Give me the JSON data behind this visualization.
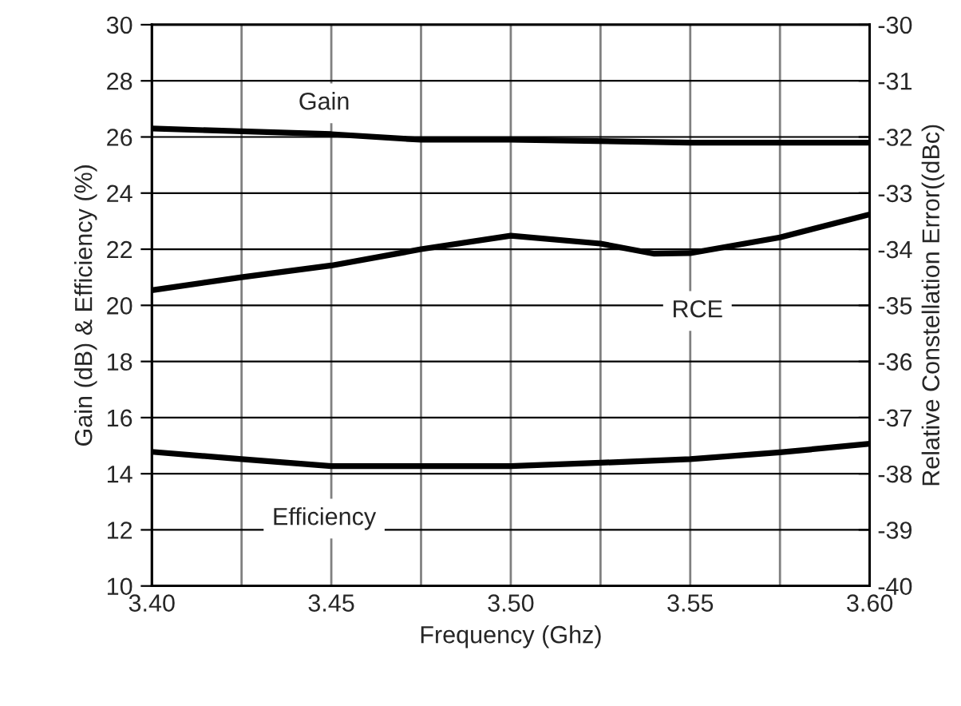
{
  "chart_data": {
    "type": "line",
    "xlabel": "Frequency (Ghz)",
    "ylabel": "Gain (dB) & Efficiency (%)",
    "y2label": "Relative Constellation Error((dBc)",
    "xlim": [
      3.4,
      3.6
    ],
    "xticks": [
      {
        "value": 3.4,
        "label": "3.40"
      },
      {
        "value": 3.425,
        "label": null
      },
      {
        "value": 3.45,
        "label": "3.45"
      },
      {
        "value": 3.475,
        "label": null
      },
      {
        "value": 3.5,
        "label": "3.50"
      },
      {
        "value": 3.525,
        "label": null
      },
      {
        "value": 3.55,
        "label": "3.55"
      },
      {
        "value": 3.575,
        "label": null
      },
      {
        "value": 3.6,
        "label": "3.60"
      }
    ],
    "ylim": [
      10,
      30
    ],
    "yticks": [
      10,
      12,
      14,
      16,
      18,
      20,
      22,
      24,
      26,
      28,
      30
    ],
    "y2lim": [
      -40,
      -30
    ],
    "y2ticks": [
      -40,
      -39,
      -38,
      -37,
      -36,
      -35,
      -34,
      -33,
      -32,
      -31,
      -30
    ],
    "grid": true,
    "legend": false,
    "marker": "none",
    "line_style": "solid",
    "series": [
      {
        "name": "Gain",
        "color": "#000000",
        "x": [
          3.4,
          3.45,
          3.475,
          3.5,
          3.55,
          3.6
        ],
        "values": [
          26.3,
          26.1,
          25.9,
          25.9,
          25.8,
          25.8
        ]
      },
      {
        "name": "RCE",
        "color": "#000000",
        "axis": "y2",
        "x": [
          3.4,
          3.425,
          3.45,
          3.475,
          3.5,
          3.525,
          3.54,
          3.55,
          3.575,
          3.6
        ],
        "values": [
          -34.73,
          -34.5,
          -34.29,
          -34.0,
          -33.76,
          -33.9,
          -34.08,
          -34.07,
          -33.79,
          -33.38
        ]
      },
      {
        "name": "Efficiency",
        "color": "#000000",
        "x": [
          3.4,
          3.425,
          3.45,
          3.5,
          3.525,
          3.55,
          3.575,
          3.6
        ],
        "values": [
          14.78,
          14.52,
          14.27,
          14.27,
          14.39,
          14.52,
          14.76,
          15.07
        ]
      }
    ]
  }
}
